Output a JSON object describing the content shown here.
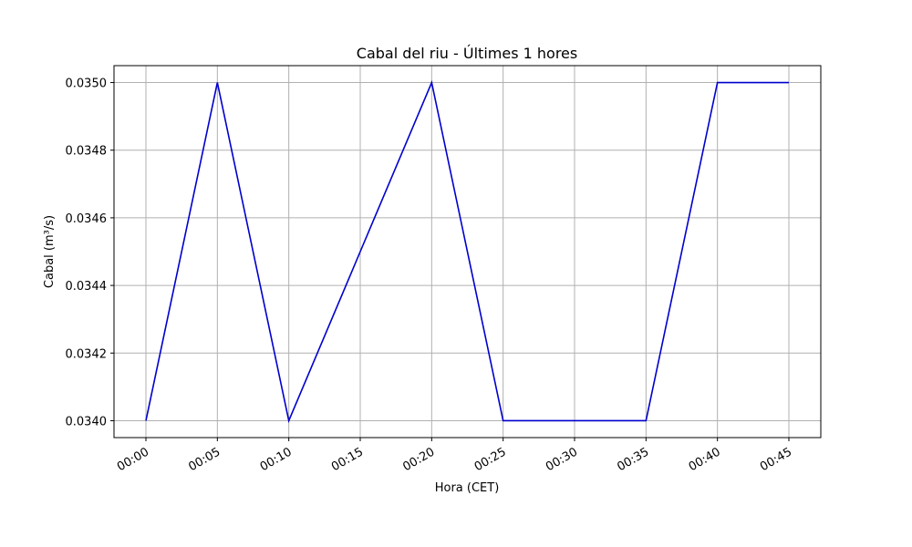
{
  "chart_data": {
    "type": "line",
    "title": "Cabal del riu - Últimes 1 hores",
    "x_label": "Hora (CET)",
    "y_label": "Cabal (m³/s)",
    "categories": [
      "00:00",
      "00:05",
      "00:10",
      "00:15",
      "00:20",
      "00:25",
      "00:30",
      "00:35",
      "00:40",
      "00:45"
    ],
    "values": [
      0.034,
      0.035,
      0.034,
      0.0345,
      0.035,
      0.034,
      0.034,
      0.034,
      0.035,
      0.035
    ],
    "color": "#0000cd",
    "ylim": [
      0.03395,
      0.03505
    ],
    "yticks": [
      {
        "value": 0.034,
        "label": "0.0340"
      },
      {
        "value": 0.0342,
        "label": "0.0342"
      },
      {
        "value": 0.0344,
        "label": "0.0344"
      },
      {
        "value": 0.0346,
        "label": "0.0346"
      },
      {
        "value": 0.0348,
        "label": "0.0348"
      },
      {
        "value": 0.035,
        "label": "0.0350"
      }
    ],
    "grid": true
  }
}
